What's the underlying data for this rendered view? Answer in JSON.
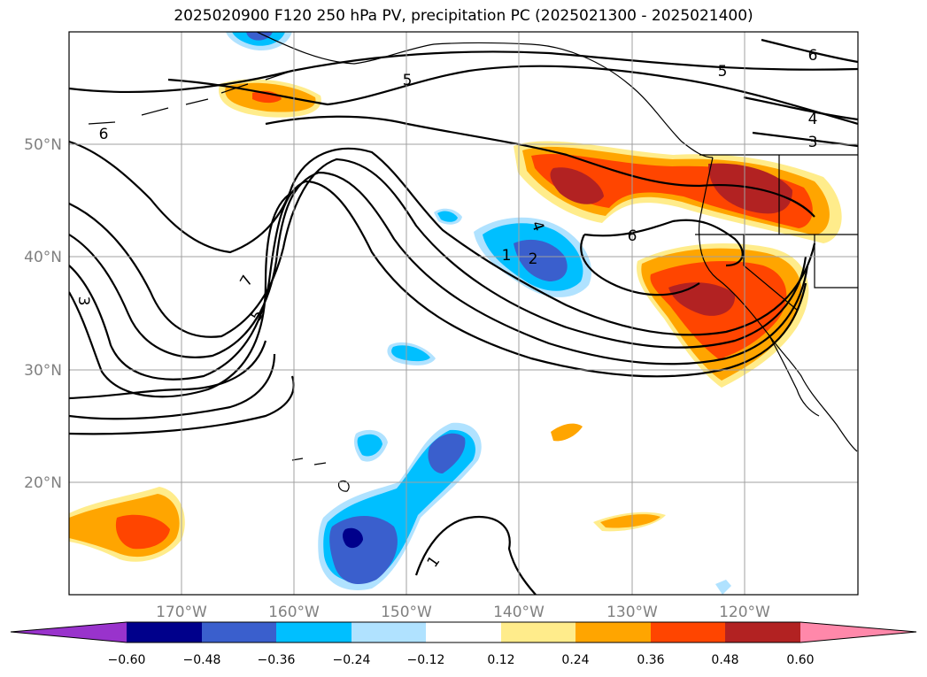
{
  "title": "2025020900 F120 250 hPa PV, precipitation PC (2025021300 - 2025021400)",
  "map": {
    "longitude_labels": [
      "170°W",
      "160°W",
      "150°W",
      "140°W",
      "130°W",
      "120°W"
    ],
    "latitude_labels": [
      "20°N",
      "30°N",
      "40°N",
      "50°N"
    ],
    "gridlines": true,
    "contour_labels": [
      "5",
      "6",
      "5",
      "6",
      "4",
      "3",
      "6",
      "7",
      "5",
      "3",
      "4",
      "1",
      "2",
      "1"
    ]
  },
  "colorbar": {
    "tick_labels": [
      "−0.60",
      "−0.48",
      "−0.36",
      "−0.24",
      "−0.12",
      "0.12",
      "0.24",
      "0.36",
      "0.48",
      "0.60"
    ],
    "colors": [
      "#9933cc",
      "#00008b",
      "#3a5fcd",
      "#00bfff",
      "#b0e2ff",
      "#ffffff",
      "#ffec8b",
      "#ffa500",
      "#ff4500",
      "#b22222",
      "#ff88aa"
    ]
  }
}
